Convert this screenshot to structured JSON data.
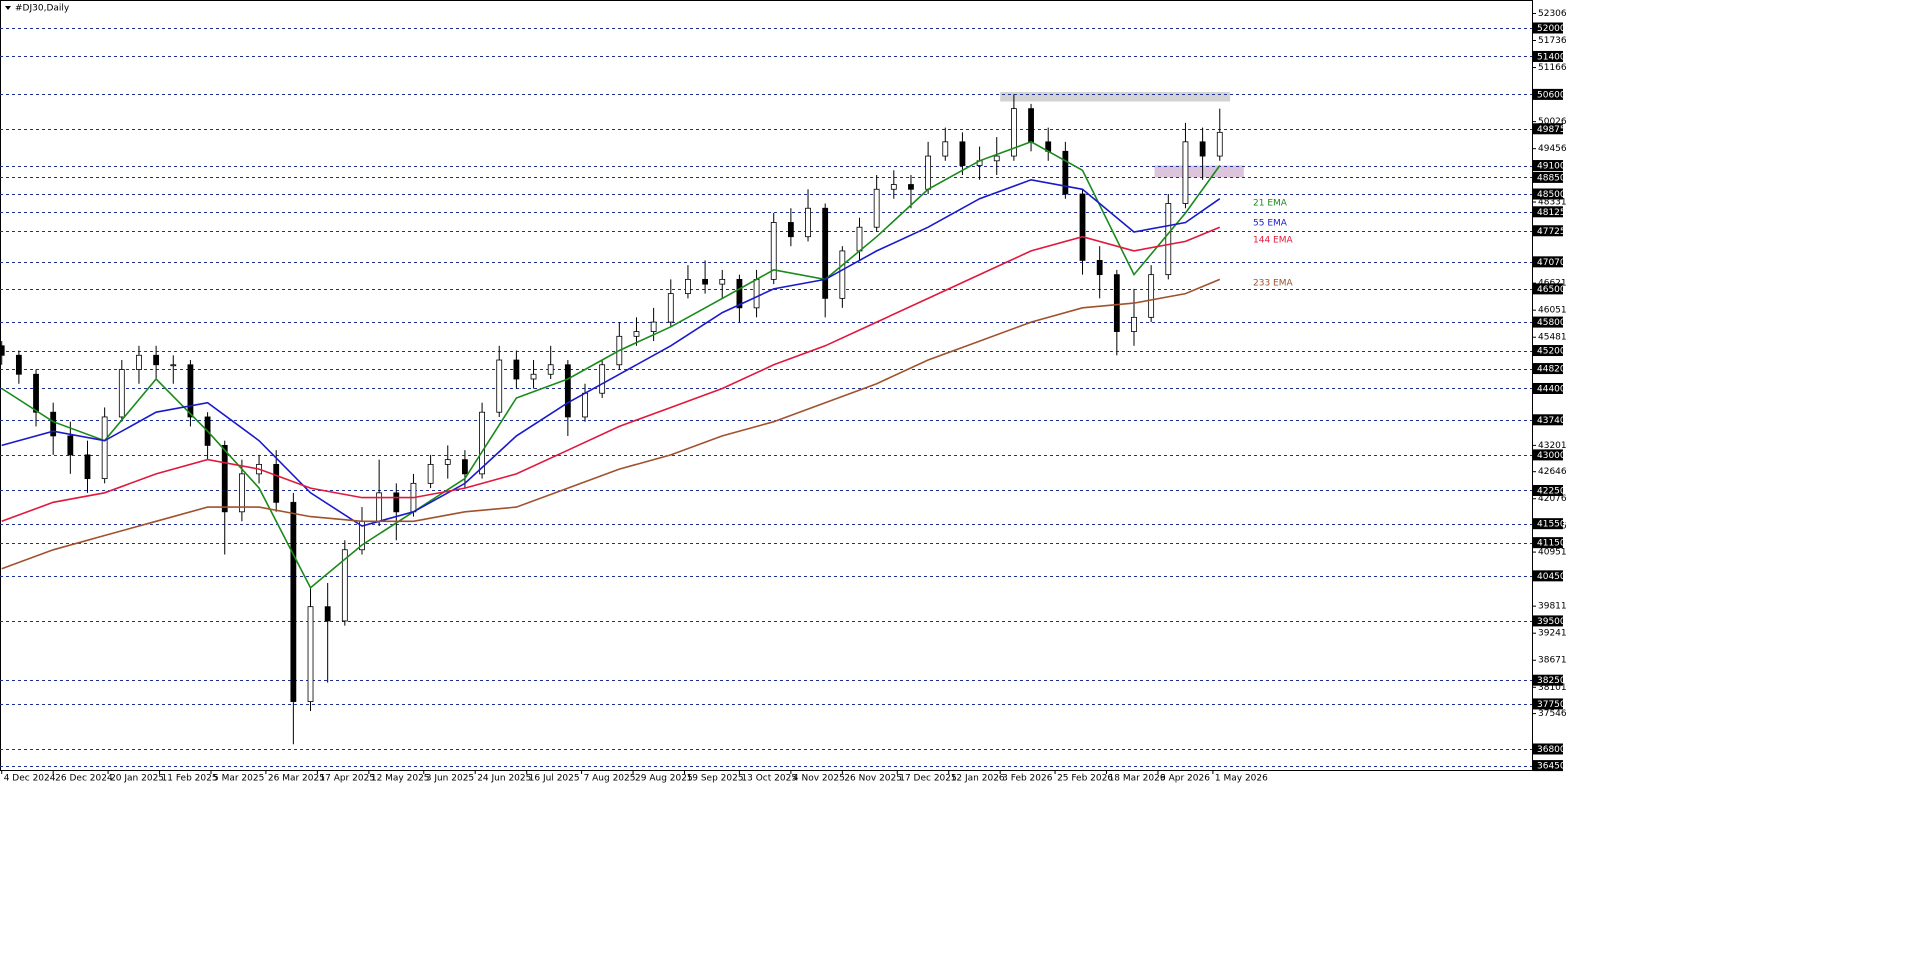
{
  "chart_data": {
    "type": "candlestick",
    "title": "#DJ30,Daily",
    "xlim": [
      -0.5,
      446
    ],
    "ylim": [
      36357,
      52590
    ],
    "xticks": [
      {
        "value": 0,
        "label": "4 Dec 2024"
      },
      {
        "value": 15,
        "label": "26 Dec 2024"
      },
      {
        "value": 31,
        "label": "20 Jan 2025"
      },
      {
        "value": 46,
        "label": "11 Feb 2025"
      },
      {
        "value": 61,
        "label": "5 Mar 2025"
      },
      {
        "value": 77,
        "label": "26 Mar 2025"
      },
      {
        "value": 92,
        "label": "17 Apr 2025"
      },
      {
        "value": 107,
        "label": "12 May 2025"
      },
      {
        "value": 123,
        "label": "3 Jun 2025"
      },
      {
        "value": 138,
        "label": "24 Jun 2025"
      },
      {
        "value": 153,
        "label": "16 Jul 2025"
      },
      {
        "value": 169,
        "label": "7 Aug 2025"
      },
      {
        "value": 184,
        "label": "29 Aug 2025"
      },
      {
        "value": 199,
        "label": "19 Sep 2025"
      },
      {
        "value": 215,
        "label": "13 Oct 2025"
      },
      {
        "value": 230,
        "label": "4 Nov 2025"
      },
      {
        "value": 245,
        "label": "26 Nov 2025"
      },
      {
        "value": 261,
        "label": "17 Dec 2025"
      },
      {
        "value": 276,
        "label": "12 Jan 2026"
      },
      {
        "value": 291,
        "label": "3 Feb 2026"
      },
      {
        "value": 307,
        "label": "25 Feb 2026"
      },
      {
        "value": 322,
        "label": "18 Mar 2026"
      },
      {
        "value": 337,
        "label": "9 Apr 2026"
      },
      {
        "value": 353,
        "label": "1 May 2026"
      }
    ],
    "yticks": [
      52306,
      51736,
      51166,
      50026,
      49456,
      48331,
      46621,
      46051,
      45481,
      43201,
      42646,
      42076,
      41506,
      40951,
      39811,
      39241,
      38671,
      38101,
      37546
    ],
    "levels": [
      52000,
      51400,
      50600,
      49875,
      49100,
      48850,
      48500,
      48125,
      47725,
      47070,
      46500,
      45800,
      45200,
      44820,
      44400,
      43740,
      43000,
      42250,
      41550,
      41150,
      40450,
      39500,
      38250,
      37750,
      36800,
      36450
    ],
    "level_color": "#1f2f8f",
    "grid": false,
    "zones": [
      {
        "from": 291,
        "to": 358,
        "low": 50450,
        "high": 50650,
        "color": "#d3d3d3"
      },
      {
        "from": 336,
        "to": 362,
        "low": 48850,
        "high": 49100,
        "color": "#dcc4dc"
      }
    ],
    "candles": {
      "up_color": "#ffffff",
      "down_color": "#000000",
      "x": [
        0,
        5,
        10,
        15,
        20,
        25,
        30,
        35,
        40,
        45,
        50,
        55,
        60,
        65,
        70,
        75,
        80,
        85,
        90,
        95,
        100,
        105,
        110,
        115,
        120,
        125,
        130,
        135,
        140,
        145,
        150,
        155,
        160,
        165,
        170,
        175,
        180,
        185,
        190,
        195,
        200,
        205,
        210,
        215,
        220,
        225,
        230,
        235,
        240,
        245,
        250,
        255,
        260,
        265,
        270,
        275,
        280,
        285,
        290,
        295,
        300,
        305,
        310,
        315,
        320,
        325,
        330,
        335,
        340,
        345,
        350,
        355
      ],
      "open": [
        45300,
        45100,
        44700,
        43900,
        43400,
        43000,
        42500,
        43800,
        44800,
        45100,
        44900,
        44900,
        43800,
        43200,
        41800,
        42600,
        42800,
        42000,
        37800,
        39800,
        39500,
        41000,
        41600,
        42200,
        41800,
        42400,
        42800,
        42900,
        42600,
        43900,
        45000,
        44600,
        44700,
        44900,
        43800,
        44300,
        44900,
        45500,
        45600,
        45800,
        46400,
        46700,
        46600,
        46700,
        46100,
        46700,
        47900,
        47600,
        48200,
        46300,
        47300,
        47800,
        48600,
        48700,
        48600,
        49300,
        49600,
        49100,
        49200,
        49300,
        50300,
        49600,
        49400,
        48500,
        47100,
        46800,
        45600,
        45900,
        46800,
        48300,
        49600,
        49300
      ],
      "high": [
        45400,
        45200,
        44800,
        44100,
        43700,
        43300,
        44000,
        45000,
        45300,
        45300,
        45100,
        45000,
        43900,
        43300,
        42900,
        43000,
        43100,
        42200,
        40200,
        40300,
        41200,
        41900,
        42900,
        42400,
        42600,
        43000,
        43200,
        43100,
        44100,
        45300,
        45200,
        45000,
        45300,
        45000,
        44500,
        45000,
        45800,
        45900,
        46100,
        46700,
        47000,
        47100,
        46900,
        46800,
        46900,
        48100,
        48200,
        48600,
        48300,
        47400,
        48000,
        48900,
        49000,
        48900,
        49600,
        49900,
        49800,
        49500,
        49700,
        50600,
        50400,
        49900,
        49600,
        48600,
        47400,
        46900,
        46500,
        47000,
        48500,
        50000,
        49900,
        50300
      ],
      "low": [
        44900,
        44500,
        43600,
        43000,
        42600,
        42200,
        42400,
        43700,
        44500,
        44600,
        44500,
        43600,
        42900,
        40900,
        41600,
        42400,
        41800,
        36900,
        37600,
        38200,
        39400,
        40900,
        41500,
        41200,
        41700,
        42300,
        42500,
        42300,
        42500,
        43800,
        44400,
        44400,
        44600,
        43400,
        43700,
        44200,
        44800,
        45300,
        45400,
        45700,
        46300,
        46400,
        46300,
        45800,
        45900,
        46600,
        47400,
        47500,
        45900,
        46100,
        47100,
        47700,
        48400,
        48200,
        48500,
        49200,
        48900,
        48800,
        48900,
        49200,
        49400,
        49200,
        48400,
        46800,
        46300,
        45100,
        45300,
        45800,
        46700,
        48200,
        48800,
        49200
      ],
      "close": [
        45100,
        44700,
        43900,
        43400,
        43000,
        42500,
        43800,
        44800,
        45100,
        44900,
        44900,
        43800,
        43200,
        41800,
        42600,
        42800,
        42000,
        37800,
        39800,
        39500,
        41000,
        41600,
        42200,
        41800,
        42400,
        42800,
        42900,
        42600,
        43900,
        45000,
        44600,
        44700,
        44900,
        43800,
        44300,
        44900,
        45500,
        45600,
        45800,
        46400,
        46700,
        46600,
        46700,
        46100,
        46700,
        47900,
        47600,
        48200,
        46300,
        47300,
        47800,
        48600,
        48700,
        48600,
        49300,
        49600,
        49100,
        49200,
        49300,
        50300,
        49600,
        49400,
        48500,
        47100,
        46800,
        45600,
        45900,
        46800,
        48300,
        49600,
        49300,
        49800
      ]
    },
    "series": [
      {
        "name": "21 EMA",
        "color": "#1a8a1a",
        "x": [
          0,
          15,
          30,
          45,
          60,
          75,
          90,
          105,
          120,
          135,
          150,
          165,
          180,
          195,
          210,
          225,
          240,
          255,
          270,
          285,
          300,
          315,
          330,
          345,
          355
        ],
        "values": [
          44400,
          43700,
          43300,
          44600,
          43500,
          42300,
          40200,
          41100,
          41800,
          42500,
          44200,
          44600,
          45200,
          45700,
          46300,
          46900,
          46700,
          47600,
          48600,
          49200,
          49600,
          49000,
          46800,
          48100,
          49100
        ]
      },
      {
        "name": "55 EMA",
        "color": "#1a1acc",
        "x": [
          0,
          15,
          30,
          45,
          60,
          75,
          90,
          105,
          120,
          135,
          150,
          165,
          180,
          195,
          210,
          225,
          240,
          255,
          270,
          285,
          300,
          315,
          330,
          345,
          355
        ],
        "values": [
          43200,
          43500,
          43300,
          43900,
          44100,
          43300,
          42200,
          41500,
          41800,
          42400,
          43400,
          44100,
          44700,
          45300,
          46000,
          46500,
          46700,
          47300,
          47800,
          48400,
          48800,
          48600,
          47700,
          47900,
          48400
        ]
      },
      {
        "name": "144 EMA",
        "color": "#e0183c",
        "x": [
          0,
          15,
          30,
          45,
          60,
          75,
          90,
          105,
          120,
          135,
          150,
          165,
          180,
          195,
          210,
          225,
          240,
          255,
          270,
          285,
          300,
          315,
          330,
          345,
          355
        ],
        "values": [
          41600,
          42000,
          42200,
          42600,
          42900,
          42700,
          42300,
          42100,
          42100,
          42300,
          42600,
          43100,
          43600,
          44000,
          44400,
          44900,
          45300,
          45800,
          46300,
          46800,
          47300,
          47600,
          47300,
          47500,
          47800
        ]
      },
      {
        "name": "233 EMA",
        "color": "#a0522d",
        "x": [
          0,
          15,
          30,
          45,
          60,
          75,
          90,
          105,
          120,
          135,
          150,
          165,
          180,
          195,
          210,
          225,
          240,
          255,
          270,
          285,
          300,
          315,
          330,
          345,
          355
        ],
        "values": [
          40600,
          41000,
          41300,
          41600,
          41900,
          41900,
          41700,
          41600,
          41600,
          41800,
          41900,
          42300,
          42700,
          43000,
          43400,
          43700,
          44100,
          44500,
          45000,
          45400,
          45800,
          46100,
          46200,
          46400,
          46700
        ]
      }
    ]
  }
}
